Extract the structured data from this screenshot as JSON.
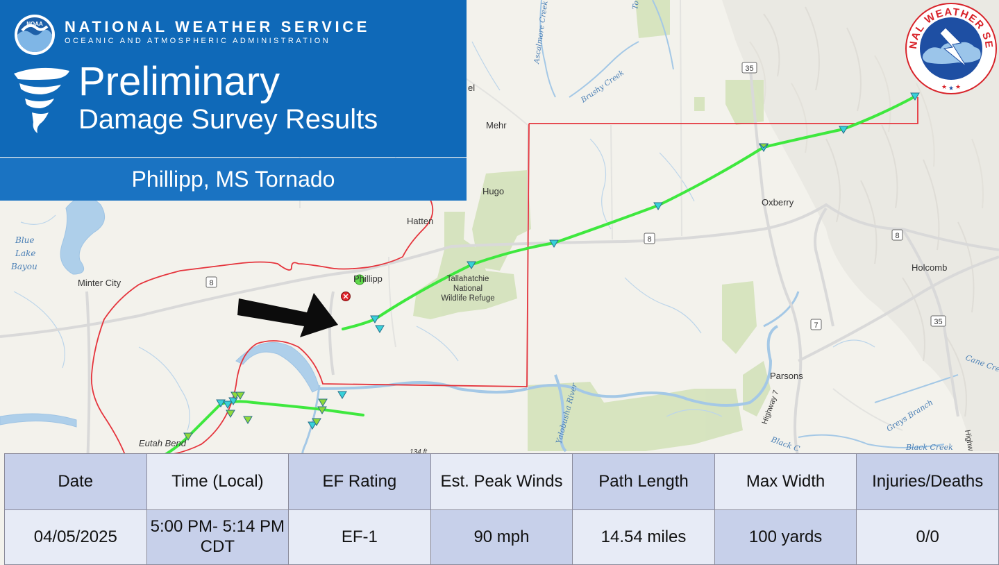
{
  "header": {
    "agency_name": "NATIONAL WEATHER SERVICE",
    "agency_sub": "OCEANIC AND ATMOSPHERIC ADMINISTRATION",
    "noaa_logo_text": "NOAA",
    "title_line1": "Preliminary",
    "title_line2": "Damage Survey Results",
    "event": "Phillipp, MS Tornado"
  },
  "nws_logo": {
    "text": "NATIONAL WEATHER SERVICE"
  },
  "map": {
    "places": {
      "minter_city": "Minter City",
      "phillipp": "Phillipp",
      "hatten": "Hatten",
      "hugo": "Hugo",
      "mehr": "Mehr",
      "oxberry": "Oxberry",
      "holcomb": "Holcomb",
      "parsons": "Parsons",
      "eutah_bend": "Eutah Bend",
      "refuge1": "Tallahatchie",
      "refuge2": "National",
      "refuge3": "Wildlife Refuge",
      "partial_top": "el"
    },
    "water": {
      "blue1": "Blue",
      "blue2": "Lake",
      "blue3": "Bayou",
      "ascalmore": "Ascalmore Creek",
      "brushy": "Brushy Creek",
      "yalobusha": "Yalobusha River",
      "greys": "Greys Branch",
      "black_creek": "Black Creek",
      "black2": "Black C",
      "cane": "Cane Cree",
      "top_creek": "To"
    },
    "roads": {
      "hwy8_a": "8",
      "hwy8_b": "8",
      "hwy8_c": "8",
      "hwy35_a": "35",
      "hwy35_b": "35",
      "hwy7": "7",
      "highway7_label": "Highway 7",
      "highway_right": "Highw"
    },
    "elevation": "134 ft",
    "colors": {
      "track": "#3ee83e",
      "boundary": "#e8323a",
      "water": "#a9cdea",
      "refuge": "#d3e2b8"
    }
  },
  "summary": {
    "headers": [
      "Date",
      "Time (Local)",
      "EF Rating",
      "Est. Peak Winds",
      "Path Length",
      "Max Width",
      "Injuries/Deaths"
    ],
    "values": [
      "04/05/2025",
      "5:00 PM- 5:14 PM CDT",
      "EF-1",
      "90 mph",
      "14.54 miles",
      "100 yards",
      "0/0"
    ]
  }
}
